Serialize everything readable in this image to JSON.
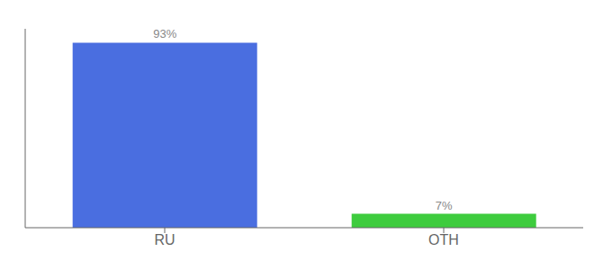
{
  "chart_data": {
    "type": "bar",
    "categories": [
      "RU",
      "OTH"
    ],
    "values": [
      93,
      7
    ],
    "value_labels": [
      "93%",
      "7%"
    ],
    "colors": [
      "#4a6ee0",
      "#3ecc3e"
    ],
    "ylim": [
      0,
      100
    ],
    "data_labels": true,
    "tick_labels": "x"
  }
}
